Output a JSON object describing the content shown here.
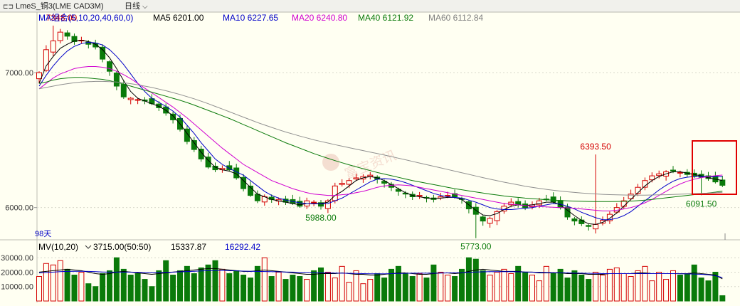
{
  "header": {
    "link_icon_glyph": "⊏⊐",
    "instrument": "LmeS_铜3(LME CAD3M)",
    "period": "日线",
    "period_caret": "⌵"
  },
  "watermark": "富宝资讯",
  "colors": {
    "background": "#fffff2",
    "up": "#d40000",
    "down": "#0a7a0a",
    "ma5": "#000000",
    "ma10": "#0000c8",
    "ma20": "#d000d0",
    "ma40": "#0a7a0a",
    "ma60": "#909090",
    "highlight_box": "#e00000"
  },
  "chart_data": [
    {
      "type": "candlestick",
      "title": "",
      "legend": [
        {
          "label": "MA组合(5,10,20,40,60,0)",
          "color": "#0000c8"
        },
        {
          "label": "MA5 6201.00",
          "color": "#000000"
        },
        {
          "label": "MA10 6227.65",
          "color": "#0000c8"
        },
        {
          "label": "MA20 6240.80",
          "color": "#d000d0"
        },
        {
          "label": "MA40 6121.92",
          "color": "#0a7a0a"
        },
        {
          "label": "MA60 6112.84",
          "color": "#808080"
        }
      ],
      "y_ticks": [
        "7000.00",
        "6000.00"
      ],
      "ylim": [
        5840,
        7380
      ],
      "bars_count": 98,
      "bars_label": "98天",
      "annotations": [
        {
          "text": "7348.00",
          "bar": 2,
          "value": 7348,
          "color": "#d40000"
        },
        {
          "text": "5988.00",
          "bar": 40,
          "value": 5988,
          "color": "#0a7a0a"
        },
        {
          "text": "5773.00",
          "bar": 62,
          "value": 5773,
          "color": "#0a7a0a"
        },
        {
          "text": "6393.50",
          "bar": 79,
          "value": 6393.5,
          "color": "#d40000"
        },
        {
          "text": "6091.50",
          "bar": 94,
          "value": 6091.5,
          "color": "#0a7a0a"
        }
      ],
      "close": [
        7000,
        7170,
        7235,
        7300,
        7270,
        7230,
        7240,
        7210,
        7190,
        7100,
        7010,
        6900,
        6820,
        6810,
        6800,
        6790,
        6770,
        6740,
        6700,
        6650,
        6580,
        6490,
        6430,
        6360,
        6300,
        6280,
        6290,
        6280,
        6220,
        6140,
        6090,
        6050,
        6080,
        6060,
        6060,
        6040,
        6030,
        6010,
        6050,
        6040,
        6010,
        6050,
        6160,
        6180,
        6200,
        6220,
        6230,
        6240,
        6210,
        6180,
        6150,
        6120,
        6100,
        6080,
        6090,
        6070,
        6060,
        6080,
        6090,
        6080,
        6060,
        5990,
        5950,
        5900,
        5920,
        5970,
        6010,
        6040,
        6020,
        6000,
        6020,
        6050,
        6060,
        6040,
        6000,
        5930,
        5900,
        5880,
        5860,
        5875,
        5905,
        5950,
        6000,
        6050,
        6100,
        6150,
        6200,
        6235,
        6250,
        6265,
        6270,
        6260,
        6245,
        6235,
        6225,
        6215,
        6190,
        6165
      ],
      "ma_lines": [
        {
          "name": "MA5",
          "color": "#000000",
          "values": [
            6920,
            7050,
            7120,
            7180,
            7210,
            7235,
            7240,
            7230,
            7210,
            7170,
            7110,
            7030,
            6940,
            6860,
            6810,
            6790,
            6770,
            6750,
            6720,
            6680,
            6620,
            6550,
            6480,
            6410,
            6350,
            6300,
            6280,
            6270,
            6250,
            6200,
            6150,
            6100,
            6080,
            6060,
            6050,
            6040,
            6030,
            6020,
            6030,
            6030,
            6030,
            6040,
            6090,
            6120,
            6160,
            6200,
            6220,
            6230,
            6220,
            6200,
            6170,
            6140,
            6110,
            6090,
            6080,
            6070,
            6065,
            6070,
            6075,
            6075,
            6060,
            6020,
            5980,
            5945,
            5940,
            5955,
            5985,
            6010,
            6020,
            6015,
            6020,
            6030,
            6040,
            6040,
            6020,
            5980,
            5940,
            5905,
            5880,
            5875,
            5890,
            5920,
            5960,
            6010,
            6060,
            6110,
            6160,
            6200,
            6230,
            6250,
            6265,
            6265,
            6255,
            6245,
            6235,
            6220,
            6210,
            6201
          ]
        },
        {
          "name": "MA10",
          "color": "#0000c8",
          "values": [
            6900,
            6980,
            7050,
            7110,
            7160,
            7195,
            7215,
            7225,
            7220,
            7205,
            7170,
            7120,
            7060,
            6990,
            6920,
            6860,
            6810,
            6780,
            6750,
            6715,
            6670,
            6610,
            6550,
            6480,
            6420,
            6360,
            6320,
            6290,
            6265,
            6240,
            6200,
            6160,
            6120,
            6090,
            6070,
            6055,
            6045,
            6035,
            6030,
            6028,
            6028,
            6030,
            6050,
            6070,
            6100,
            6130,
            6160,
            6190,
            6210,
            6215,
            6210,
            6200,
            6185,
            6165,
            6145,
            6125,
            6105,
            6090,
            6080,
            6075,
            6070,
            6055,
            6040,
            6020,
            6000,
            5990,
            5985,
            5985,
            5990,
            5995,
            6000,
            6010,
            6020,
            6030,
            6025,
            6010,
            5990,
            5965,
            5945,
            5925,
            5910,
            5910,
            5920,
            5940,
            5970,
            6010,
            6050,
            6090,
            6130,
            6165,
            6195,
            6215,
            6225,
            6230,
            6232,
            6230,
            6228,
            6227.65
          ]
        },
        {
          "name": "MA20",
          "color": "#d000d0",
          "values": [
            6880,
            6920,
            6960,
            6990,
            7010,
            7030,
            7040,
            7045,
            7045,
            7040,
            7030,
            7010,
            6985,
            6955,
            6920,
            6885,
            6850,
            6815,
            6780,
            6745,
            6705,
            6665,
            6620,
            6575,
            6530,
            6485,
            6440,
            6400,
            6360,
            6320,
            6290,
            6260,
            6230,
            6200,
            6180,
            6160,
            6140,
            6125,
            6110,
            6100,
            6095,
            6090,
            6090,
            6095,
            6100,
            6110,
            6120,
            6135,
            6150,
            6160,
            6165,
            6168,
            6165,
            6160,
            6150,
            6140,
            6130,
            6120,
            6110,
            6100,
            6090,
            6080,
            6070,
            6060,
            6050,
            6040,
            6030,
            6025,
            6020,
            6015,
            6010,
            6008,
            6005,
            6002,
            6000,
            5998,
            5995,
            5990,
            5985,
            5980,
            5975,
            5975,
            5980,
            5990,
            6000,
            6015,
            6035,
            6060,
            6090,
            6120,
            6150,
            6175,
            6195,
            6210,
            6222,
            6230,
            6236,
            6240.8
          ]
        },
        {
          "name": "MA40",
          "color": "#0a7a0a",
          "values": [
            6920,
            6930,
            6945,
            6955,
            6960,
            6965,
            6965,
            6960,
            6955,
            6950,
            6940,
            6928,
            6915,
            6900,
            6885,
            6870,
            6855,
            6840,
            6825,
            6810,
            6795,
            6778,
            6760,
            6740,
            6720,
            6700,
            6680,
            6660,
            6638,
            6615,
            6593,
            6570,
            6548,
            6525,
            6503,
            6480,
            6460,
            6440,
            6420,
            6400,
            6382,
            6365,
            6348,
            6332,
            6317,
            6302,
            6288,
            6274,
            6260,
            6248,
            6236,
            6224,
            6212,
            6200,
            6190,
            6180,
            6170,
            6160,
            6150,
            6140,
            6132,
            6124,
            6116,
            6108,
            6100,
            6093,
            6086,
            6080,
            6075,
            6070,
            6066,
            6062,
            6058,
            6055,
            6052,
            6050,
            6048,
            6046,
            6045,
            6044,
            6044,
            6044,
            6045,
            6046,
            6048,
            6051,
            6055,
            6060,
            6066,
            6072,
            6078,
            6084,
            6090,
            6096,
            6102,
            6108,
            6114,
            6121.92
          ]
        },
        {
          "name": "MA60",
          "color": "#909090",
          "values": [
            6880,
            6890,
            6900,
            6910,
            6918,
            6925,
            6930,
            6933,
            6935,
            6935,
            6933,
            6930,
            6925,
            6918,
            6910,
            6900,
            6890,
            6878,
            6866,
            6852,
            6838,
            6822,
            6806,
            6788,
            6770,
            6750,
            6730,
            6710,
            6690,
            6670,
            6650,
            6630,
            6612,
            6594,
            6577,
            6560,
            6545,
            6530,
            6516,
            6502,
            6490,
            6478,
            6466,
            6455,
            6444,
            6433,
            6422,
            6411,
            6400,
            6389,
            6378,
            6366,
            6354,
            6342,
            6330,
            6318,
            6306,
            6294,
            6282,
            6270,
            6258,
            6246,
            6234,
            6222,
            6210,
            6199,
            6188,
            6178,
            6168,
            6158,
            6150,
            6142,
            6135,
            6128,
            6122,
            6117,
            6112,
            6108,
            6104,
            6101,
            6098,
            6096,
            6094,
            6093,
            6092,
            6092,
            6092,
            6093,
            6094,
            6095,
            6097,
            6099,
            6101,
            6103,
            6105,
            6107,
            6110,
            6112.84
          ]
        }
      ]
    },
    {
      "type": "bar",
      "title": "",
      "legend": [
        {
          "label": "MV(10,20)",
          "color": "#000000"
        },
        {
          "label": "3715.00(50:50)",
          "color": "#000000"
        },
        {
          "label": "15337.87",
          "color": "#000000"
        },
        {
          "label": "16292.42",
          "color": "#0000c8"
        }
      ],
      "y_ticks": [
        "30000.00",
        "20000.00",
        "10000.00"
      ],
      "ylim": [
        0,
        36000
      ],
      "values": [
        17000,
        26000,
        25000,
        28000,
        22000,
        18000,
        20000,
        12000,
        10000,
        19000,
        21000,
        30000,
        22000,
        18000,
        19000,
        15000,
        10000,
        21000,
        28000,
        18000,
        21000,
        24000,
        19000,
        23000,
        25000,
        28000,
        22000,
        19000,
        21000,
        18000,
        16000,
        24000,
        30000,
        17000,
        20000,
        15000,
        18000,
        17000,
        15000,
        21000,
        23000,
        20000,
        16000,
        24000,
        13000,
        21000,
        12000,
        15000,
        19000,
        16000,
        22000,
        24000,
        19000,
        17000,
        19000,
        16000,
        25000,
        20000,
        18000,
        17000,
        22000,
        30000,
        29000,
        21000,
        18000,
        20000,
        22000,
        19000,
        24000,
        20000,
        18000,
        14000,
        24000,
        19000,
        22000,
        16000,
        21000,
        18000,
        15000,
        20000,
        18000,
        22000,
        23000,
        19000,
        17000,
        21000,
        24000,
        14000,
        20000,
        15000,
        21000,
        18000,
        19000,
        25000,
        16000,
        14000,
        20000,
        3715
      ],
      "ma_lines": [
        {
          "name": "MV10",
          "color": "#000000",
          "values": [
            20000,
            20500,
            21000,
            21500,
            22000,
            21500,
            21000,
            20000,
            19000,
            18500,
            19000,
            20000,
            20500,
            20000,
            19500,
            19000,
            18500,
            19000,
            19500,
            20000,
            20500,
            21000,
            21500,
            22000,
            22500,
            22500,
            22000,
            21500,
            21000,
            20500,
            20500,
            21000,
            21500,
            21000,
            20500,
            20000,
            19500,
            19000,
            18500,
            18500,
            19000,
            19000,
            19000,
            19500,
            19000,
            18500,
            18500,
            18000,
            18000,
            18500,
            19000,
            19500,
            19500,
            19000,
            18500,
            18500,
            19000,
            19500,
            19500,
            19000,
            19500,
            20500,
            21500,
            22000,
            21500,
            21000,
            20500,
            20500,
            20500,
            20000,
            20000,
            19500,
            19500,
            19500,
            19500,
            19000,
            19000,
            19000,
            18500,
            18500,
            18500,
            19000,
            19000,
            19000,
            19000,
            19500,
            19500,
            19000,
            19000,
            19000,
            19000,
            19000,
            19000,
            19500,
            19000,
            18500,
            18000,
            15337.87
          ]
        },
        {
          "name": "MV20",
          "color": "#0000c8",
          "values": [
            19500,
            19800,
            20000,
            20300,
            20500,
            20600,
            20600,
            20500,
            20300,
            20100,
            20000,
            20000,
            20000,
            20000,
            19900,
            19800,
            19800,
            19800,
            19900,
            20000,
            20200,
            20400,
            20600,
            20800,
            21000,
            21100,
            21100,
            21000,
            20900,
            20700,
            20600,
            20500,
            20400,
            20300,
            20200,
            20100,
            20000,
            19900,
            19800,
            19700,
            19600,
            19500,
            19400,
            19300,
            19200,
            19100,
            19000,
            18900,
            18900,
            18900,
            19000,
            19100,
            19200,
            19300,
            19300,
            19300,
            19300,
            19400,
            19500,
            19600,
            19700,
            19900,
            20100,
            20200,
            20300,
            20300,
            20300,
            20300,
            20200,
            20100,
            20000,
            19900,
            19800,
            19700,
            19600,
            19500,
            19400,
            19300,
            19200,
            19100,
            19000,
            19000,
            19000,
            19000,
            19000,
            19000,
            19000,
            19000,
            19000,
            19000,
            19000,
            18900,
            18800,
            18700,
            18500,
            18200,
            17500,
            16292.42
          ]
        }
      ]
    }
  ]
}
